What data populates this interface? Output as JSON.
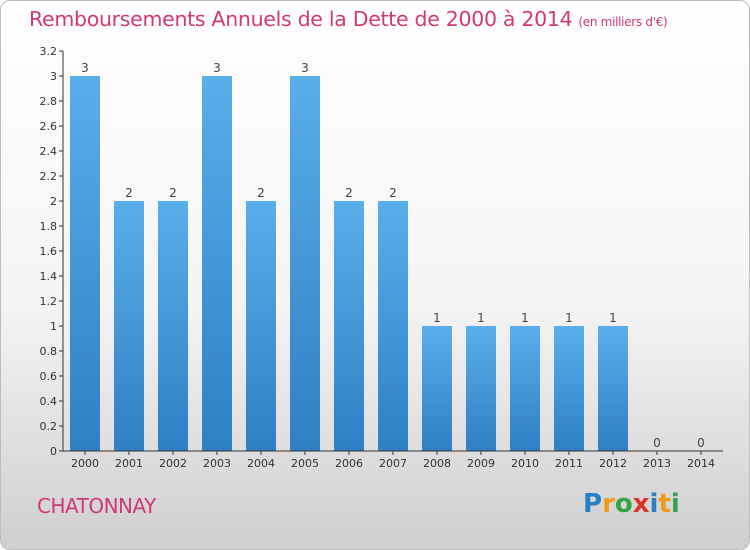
{
  "title": "Remboursements Annuels de la Dette de 2000 à 2014",
  "unit_note": "(en milliers d'€)",
  "commune": "CHATONNAY",
  "logo": {
    "letters": [
      {
        "char": "P",
        "color": "#2b7fc4"
      },
      {
        "char": "r",
        "color": "#f29a17"
      },
      {
        "char": "o",
        "color": "#35a447"
      },
      {
        "char": "x",
        "color": "#d9342b"
      },
      {
        "char": "i",
        "color": "#2b7fc4"
      },
      {
        "char": "t",
        "color": "#f29a17"
      },
      {
        "char": "i",
        "color": "#35a447"
      }
    ]
  },
  "chart_data": {
    "type": "bar",
    "categories": [
      "2000",
      "2001",
      "2002",
      "2003",
      "2004",
      "2005",
      "2006",
      "2007",
      "2008",
      "2009",
      "2010",
      "2011",
      "2012",
      "2013",
      "2014"
    ],
    "values": [
      3,
      2,
      2,
      3,
      2,
      3,
      2,
      2,
      1,
      1,
      1,
      1,
      1,
      0,
      0
    ],
    "data_labels": [
      "3",
      "2",
      "2",
      "3",
      "2",
      "3",
      "2",
      "2",
      "1",
      "1",
      "1",
      "1",
      "1",
      "0",
      "0"
    ],
    "y_ticks": [
      {
        "value": 0,
        "label": "0"
      },
      {
        "value": 0.2,
        "label": "0.2"
      },
      {
        "value": 0.4,
        "label": "0.4"
      },
      {
        "value": 0.6,
        "label": "0.6"
      },
      {
        "value": 0.8,
        "label": "0.8"
      },
      {
        "value": 1,
        "label": "1"
      },
      {
        "value": 1.2,
        "label": "1.2"
      },
      {
        "value": 1.4,
        "label": "1.4"
      },
      {
        "value": 1.6,
        "label": "1.6"
      },
      {
        "value": 1.8,
        "label": "1.8"
      },
      {
        "value": 2,
        "label": "2"
      },
      {
        "value": 2.2,
        "label": "2.2"
      },
      {
        "value": 2.4,
        "label": "2.4"
      },
      {
        "value": 2.6,
        "label": "2.6"
      },
      {
        "value": 2.8,
        "label": "2.8"
      },
      {
        "value": 3,
        "label": "3"
      },
      {
        "value": 3.2,
        "label": "3.2"
      }
    ],
    "ylim": [
      0,
      3.2
    ],
    "xlabel": "",
    "ylabel": "",
    "grid": false,
    "legend": "none",
    "bar_color": "#4a9fe0",
    "text_color": "#d2377a"
  }
}
